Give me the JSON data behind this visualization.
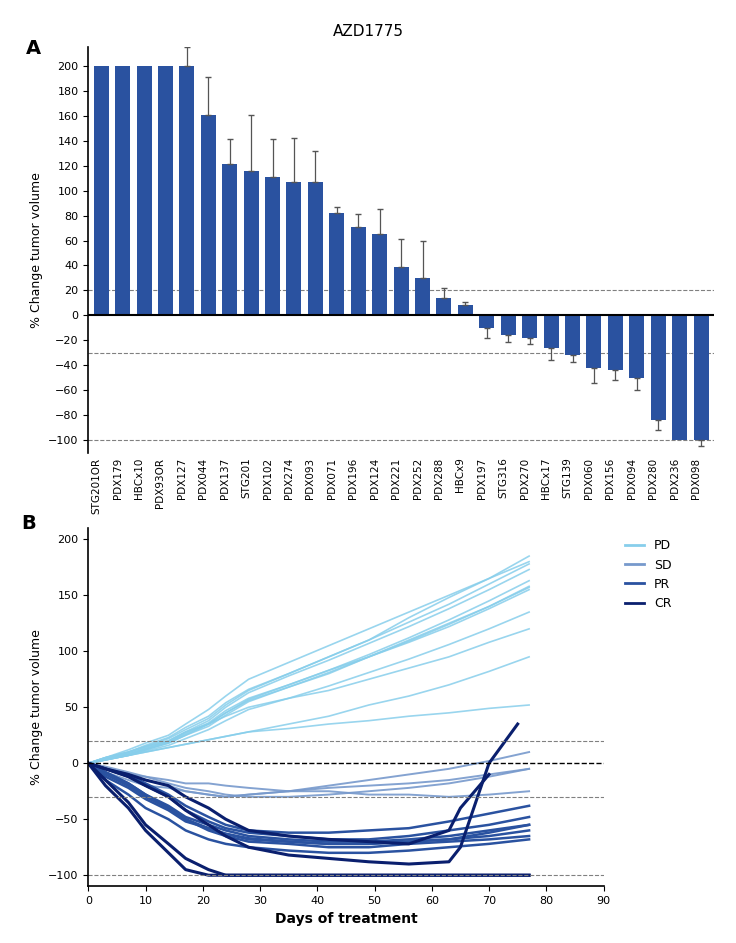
{
  "title": "AZD1775",
  "panel_a": {
    "categories": [
      "STG201OR",
      "PDX179",
      "HBCx10",
      "PDX93OR",
      "PDX127",
      "PDX044",
      "PDX137",
      "STG201",
      "PDX102",
      "PDX274",
      "PDX093",
      "PDX071",
      "PDX196",
      "PDX124",
      "PDX221",
      "PDX252",
      "PDX288",
      "HBCx9",
      "PDX197",
      "STG316",
      "PDX270",
      "HBCx17",
      "STG139",
      "PDX060",
      "PDX156",
      "PDX094",
      "PDX280",
      "PDX236",
      "PDX098"
    ],
    "values": [
      200,
      200,
      200,
      200,
      200,
      161,
      121,
      116,
      111,
      107,
      107,
      82,
      71,
      65,
      39,
      30,
      14,
      8,
      -10,
      -16,
      -18,
      -26,
      -32,
      -42,
      -44,
      -50,
      -84,
      -100,
      -100
    ],
    "errors": [
      0,
      0,
      0,
      0,
      15,
      30,
      20,
      45,
      30,
      35,
      25,
      5,
      10,
      20,
      22,
      30,
      8,
      3,
      8,
      5,
      5,
      10,
      5,
      12,
      8,
      10,
      8,
      0,
      5
    ],
    "bar_color": "#2a52a0",
    "ylabel": "% Change tumor volume",
    "dashed_lines": [
      20,
      -30,
      -100
    ],
    "ylim": [
      -110,
      215
    ],
    "yticks": [
      -100,
      -80,
      -60,
      -40,
      -20,
      0,
      20,
      40,
      60,
      80,
      100,
      120,
      140,
      160,
      180,
      200
    ]
  },
  "panel_b": {
    "ylabel": "% Change tumor volume",
    "xlabel": "Days of treatment",
    "dashed_lines": [
      20,
      0,
      -30,
      -100
    ],
    "ylim": [
      -110,
      210
    ],
    "yticks": [
      -100,
      -50,
      0,
      50,
      100,
      150,
      200
    ],
    "xlim": [
      0,
      90
    ],
    "xticks": [
      0,
      10,
      20,
      30,
      40,
      50,
      60,
      70,
      80,
      90
    ],
    "colors": {
      "PD": "#87CEEB",
      "SD": "#7799CC",
      "PR": "#2a52a0",
      "CR": "#0a1f6e"
    },
    "lines": [
      {
        "category": "PD",
        "days": [
          0,
          3,
          7,
          10,
          14,
          17,
          21,
          24,
          28,
          35,
          42,
          49,
          56,
          63,
          70,
          77
        ],
        "values": [
          0,
          3,
          7,
          10,
          14,
          17,
          21,
          24,
          28,
          31,
          35,
          38,
          42,
          45,
          49,
          52
        ]
      },
      {
        "category": "PD",
        "days": [
          0,
          3,
          7,
          10,
          14,
          17,
          21,
          24,
          28,
          35,
          42,
          49,
          56,
          63,
          70,
          77
        ],
        "values": [
          0,
          5,
          10,
          15,
          20,
          28,
          35,
          42,
          50,
          58,
          65,
          75,
          85,
          95,
          108,
          120
        ]
      },
      {
        "category": "PD",
        "days": [
          0,
          3,
          7,
          10,
          14,
          17,
          21,
          24,
          28,
          35,
          42,
          49,
          56,
          63,
          70,
          77
        ],
        "values": [
          0,
          3,
          7,
          10,
          14,
          17,
          21,
          24,
          28,
          35,
          42,
          52,
          60,
          70,
          82,
          95
        ]
      },
      {
        "category": "PD",
        "days": [
          0,
          3,
          7,
          10,
          14,
          17,
          21,
          24,
          28,
          35,
          42,
          49,
          56,
          63,
          70,
          77
        ],
        "values": [
          0,
          5,
          10,
          15,
          22,
          30,
          40,
          52,
          65,
          80,
          95,
          110,
          130,
          148,
          165,
          185
        ]
      },
      {
        "category": "PD",
        "days": [
          0,
          3,
          7,
          10,
          14,
          17,
          21,
          24,
          28,
          35,
          42,
          49,
          56,
          63,
          70,
          77
        ],
        "values": [
          0,
          4,
          8,
          12,
          18,
          25,
          33,
          43,
          55,
          68,
          80,
          95,
          108,
          122,
          138,
          155
        ]
      },
      {
        "category": "PD",
        "days": [
          0,
          3,
          7,
          10,
          14,
          17,
          21,
          24,
          28,
          35,
          42,
          49,
          56,
          63,
          70,
          77
        ],
        "values": [
          0,
          3,
          7,
          12,
          18,
          25,
          35,
          45,
          57,
          70,
          83,
          95,
          110,
          125,
          140,
          158
        ]
      },
      {
        "category": "PD",
        "days": [
          0,
          3,
          7,
          10,
          14,
          17,
          21,
          24,
          28,
          35,
          42,
          49,
          56,
          63,
          70,
          77
        ],
        "values": [
          0,
          5,
          12,
          18,
          25,
          35,
          48,
          60,
          75,
          90,
          105,
          120,
          135,
          150,
          165,
          180
        ]
      },
      {
        "category": "PD",
        "days": [
          0,
          3,
          7,
          10,
          14,
          17,
          21,
          24,
          28,
          35,
          42,
          49,
          56,
          63,
          70,
          77
        ],
        "values": [
          0,
          4,
          9,
          14,
          20,
          28,
          38,
          50,
          63,
          78,
          92,
          107,
          122,
          138,
          155,
          173
        ]
      },
      {
        "category": "PD",
        "days": [
          0,
          3,
          7,
          10,
          14,
          17,
          21,
          24,
          28,
          35,
          42,
          49,
          56,
          63,
          70,
          77
        ],
        "values": [
          0,
          5,
          10,
          16,
          23,
          32,
          42,
          54,
          66,
          80,
          95,
          110,
          126,
          142,
          160,
          178
        ]
      },
      {
        "category": "PD",
        "days": [
          0,
          3,
          7,
          10,
          14,
          17,
          21,
          24,
          28,
          35,
          42,
          49,
          56,
          63,
          70,
          77
        ],
        "values": [
          0,
          3,
          8,
          13,
          19,
          27,
          36,
          47,
          58,
          70,
          83,
          97,
          112,
          128,
          145,
          163
        ]
      },
      {
        "category": "PD",
        "days": [
          0,
          3,
          7,
          10,
          14,
          17,
          21,
          24,
          28,
          35,
          42,
          49,
          56,
          63,
          70,
          77
        ],
        "values": [
          0,
          4,
          8,
          13,
          19,
          26,
          35,
          45,
          56,
          68,
          81,
          95,
          109,
          124,
          140,
          157
        ]
      },
      {
        "category": "PD",
        "days": [
          0,
          3,
          7,
          10,
          14,
          17,
          21,
          24,
          28,
          35,
          42,
          49,
          56,
          63,
          70,
          77
        ],
        "values": [
          0,
          3,
          7,
          11,
          16,
          22,
          30,
          38,
          48,
          58,
          69,
          81,
          93,
          106,
          120,
          135
        ]
      },
      {
        "category": "SD",
        "days": [
          0,
          3,
          7,
          10,
          14,
          17,
          21,
          24,
          28,
          35,
          42,
          49,
          56,
          63,
          70,
          77
        ],
        "values": [
          0,
          -5,
          -10,
          -12,
          -15,
          -18,
          -18,
          -20,
          -22,
          -25,
          -25,
          -28,
          -28,
          -30,
          -28,
          -25
        ]
      },
      {
        "category": "SD",
        "days": [
          0,
          3,
          7,
          10,
          14,
          17,
          21,
          24,
          28,
          35,
          42,
          49,
          56,
          63,
          70,
          77
        ],
        "values": [
          0,
          -8,
          -15,
          -20,
          -22,
          -25,
          -28,
          -30,
          -28,
          -25,
          -22,
          -20,
          -18,
          -15,
          -10,
          -5
        ]
      },
      {
        "category": "SD",
        "days": [
          0,
          3,
          7,
          10,
          14,
          17,
          21,
          24,
          28,
          35,
          42,
          49,
          56,
          63,
          70,
          77
        ],
        "values": [
          0,
          -3,
          -8,
          -12,
          -18,
          -22,
          -25,
          -28,
          -30,
          -30,
          -28,
          -25,
          -22,
          -18,
          -12,
          -5
        ]
      },
      {
        "category": "SD",
        "days": [
          0,
          3,
          7,
          10,
          14,
          17,
          21,
          24,
          28,
          35,
          42,
          49,
          56,
          63,
          70,
          77
        ],
        "values": [
          0,
          -5,
          -10,
          -15,
          -20,
          -25,
          -28,
          -30,
          -28,
          -25,
          -20,
          -15,
          -10,
          -5,
          2,
          10
        ]
      },
      {
        "category": "PR",
        "days": [
          0,
          3,
          7,
          10,
          14,
          17,
          21,
          24,
          28,
          35,
          42,
          49,
          56,
          63,
          70,
          77
        ],
        "values": [
          0,
          -10,
          -20,
          -30,
          -40,
          -50,
          -60,
          -65,
          -70,
          -72,
          -75,
          -75,
          -72,
          -70,
          -68,
          -65
        ]
      },
      {
        "category": "PR",
        "days": [
          0,
          3,
          7,
          10,
          14,
          17,
          21,
          24,
          28,
          35,
          42,
          49,
          56,
          63,
          70,
          77
        ],
        "values": [
          0,
          -15,
          -28,
          -40,
          -50,
          -60,
          -68,
          -72,
          -75,
          -78,
          -80,
          -80,
          -78,
          -75,
          -72,
          -68
        ]
      },
      {
        "category": "PR",
        "days": [
          0,
          3,
          7,
          10,
          14,
          17,
          21,
          24,
          28,
          35,
          42,
          49,
          56,
          63,
          70,
          77
        ],
        "values": [
          0,
          -8,
          -18,
          -28,
          -38,
          -48,
          -55,
          -60,
          -65,
          -68,
          -70,
          -70,
          -68,
          -65,
          -60,
          -55
        ]
      },
      {
        "category": "PR",
        "days": [
          0,
          3,
          7,
          10,
          14,
          17,
          21,
          24,
          28,
          35,
          42,
          49,
          56,
          63,
          70,
          77
        ],
        "values": [
          0,
          -12,
          -22,
          -32,
          -42,
          -52,
          -58,
          -63,
          -68,
          -70,
          -72,
          -72,
          -70,
          -68,
          -65,
          -60
        ]
      },
      {
        "category": "PR",
        "days": [
          0,
          3,
          7,
          10,
          14,
          17,
          21,
          24,
          28,
          35,
          42,
          49,
          56,
          63,
          70,
          77
        ],
        "values": [
          0,
          -5,
          -12,
          -20,
          -30,
          -42,
          -52,
          -58,
          -62,
          -65,
          -68,
          -68,
          -65,
          -60,
          -55,
          -48
        ]
      },
      {
        "category": "PR",
        "days": [
          0,
          3,
          7,
          10,
          14,
          17,
          21,
          24,
          28,
          35,
          42,
          49,
          56,
          63,
          70,
          77
        ],
        "values": [
          0,
          -8,
          -18,
          -28,
          -40,
          -50,
          -58,
          -63,
          -67,
          -70,
          -72,
          -72,
          -70,
          -68,
          -62,
          -55
        ]
      },
      {
        "category": "PR",
        "days": [
          0,
          3,
          7,
          10,
          14,
          17,
          21,
          24,
          28,
          35,
          42,
          49,
          56,
          63,
          70,
          77
        ],
        "values": [
          0,
          -5,
          -10,
          -18,
          -28,
          -38,
          -48,
          -55,
          -60,
          -62,
          -62,
          -60,
          -58,
          -52,
          -45,
          -38
        ]
      },
      {
        "category": "CR",
        "days": [
          0,
          3,
          7,
          10,
          14,
          17,
          21,
          24,
          28,
          35,
          42,
          49,
          56,
          63,
          70,
          77
        ],
        "values": [
          0,
          -20,
          -40,
          -60,
          -80,
          -95,
          -100,
          -100,
          -100,
          -100,
          -100,
          -100,
          -100,
          -100,
          -100,
          -100
        ]
      },
      {
        "category": "CR",
        "days": [
          0,
          3,
          7,
          10,
          14,
          17,
          21,
          24,
          28,
          35,
          42,
          49,
          56,
          63,
          70,
          77
        ],
        "values": [
          0,
          -15,
          -35,
          -55,
          -72,
          -85,
          -95,
          -100,
          -100,
          -100,
          -100,
          -100,
          -100,
          -100,
          -100,
          -100
        ]
      },
      {
        "category": "CR",
        "days": [
          0,
          3,
          7,
          10,
          14,
          17,
          21,
          24,
          28,
          35,
          42,
          49,
          56,
          63,
          65,
          70,
          75
        ],
        "values": [
          0,
          -5,
          -12,
          -20,
          -30,
          -42,
          -55,
          -65,
          -75,
          -82,
          -85,
          -88,
          -90,
          -88,
          -75,
          0,
          35
        ]
      },
      {
        "category": "CR",
        "days": [
          0,
          3,
          7,
          10,
          14,
          17,
          21,
          24,
          28,
          35,
          42,
          49,
          56,
          63,
          65,
          70
        ],
        "values": [
          0,
          -5,
          -10,
          -15,
          -20,
          -30,
          -40,
          -50,
          -60,
          -65,
          -68,
          -70,
          -72,
          -60,
          -40,
          -10
        ]
      }
    ]
  }
}
